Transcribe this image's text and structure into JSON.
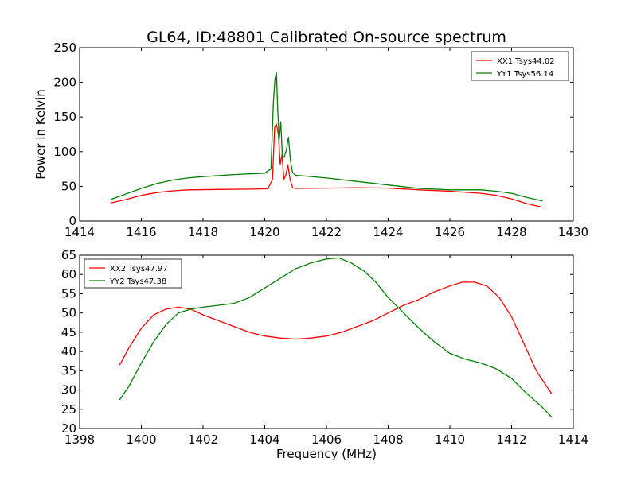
{
  "chart_data": [
    {
      "type": "line",
      "title": "GL64, ID:48801 Calibrated On-source spectrum",
      "xlabel": "",
      "ylabel": "Power in Kelvin",
      "xlim": [
        1414,
        1430
      ],
      "ylim": [
        0,
        250
      ],
      "xticks": [
        1414,
        1416,
        1418,
        1420,
        1422,
        1424,
        1426,
        1428,
        1430
      ],
      "yticks": [
        0,
        50,
        100,
        150,
        200,
        250
      ],
      "grid": false,
      "legend": "top-right",
      "series": [
        {
          "name": "XX1 Tsys44.02",
          "color": "#ff0000",
          "points": [
            [
              1415.0,
              26
            ],
            [
              1415.5,
              31
            ],
            [
              1416.0,
              37
            ],
            [
              1416.5,
              41
            ],
            [
              1417.0,
              43.5
            ],
            [
              1417.5,
              45
            ],
            [
              1418.5,
              45.5
            ],
            [
              1419.5,
              46
            ],
            [
              1420.1,
              46.5
            ],
            [
              1420.25,
              60
            ],
            [
              1420.32,
              135
            ],
            [
              1420.38,
              140
            ],
            [
              1420.44,
              125
            ],
            [
              1420.5,
              82
            ],
            [
              1420.56,
              96
            ],
            [
              1420.62,
              60
            ],
            [
              1420.68,
              66
            ],
            [
              1420.75,
              81
            ],
            [
              1420.82,
              60
            ],
            [
              1420.9,
              48
            ],
            [
              1421.0,
              47
            ],
            [
              1422.0,
              47.5
            ],
            [
              1423.0,
              48
            ],
            [
              1424.0,
              47.5
            ],
            [
              1425.0,
              45
            ],
            [
              1426.0,
              43
            ],
            [
              1427.0,
              40
            ],
            [
              1427.5,
              37
            ],
            [
              1428.0,
              32
            ],
            [
              1428.5,
              25
            ],
            [
              1429.0,
              20
            ]
          ]
        },
        {
          "name": "YY1 Tsys56.14",
          "color": "#008000",
          "points": [
            [
              1415.0,
              31
            ],
            [
              1415.5,
              39
            ],
            [
              1416.0,
              47
            ],
            [
              1416.5,
              54
            ],
            [
              1417.0,
              59
            ],
            [
              1417.5,
              62
            ],
            [
              1418.0,
              64
            ],
            [
              1419.0,
              67
            ],
            [
              1420.0,
              69
            ],
            [
              1420.2,
              75
            ],
            [
              1420.28,
              170
            ],
            [
              1420.33,
              205
            ],
            [
              1420.38,
              214
            ],
            [
              1420.42,
              160
            ],
            [
              1420.47,
              118
            ],
            [
              1420.52,
              143
            ],
            [
              1420.57,
              95
            ],
            [
              1420.63,
              92
            ],
            [
              1420.7,
              102
            ],
            [
              1420.77,
              121
            ],
            [
              1420.83,
              88
            ],
            [
              1420.9,
              70
            ],
            [
              1421.0,
              66
            ],
            [
              1422.0,
              62
            ],
            [
              1423.0,
              57
            ],
            [
              1424.0,
              52
            ],
            [
              1425.0,
              47
            ],
            [
              1426.0,
              45
            ],
            [
              1427.0,
              45
            ],
            [
              1427.5,
              43
            ],
            [
              1428.0,
              40
            ],
            [
              1428.5,
              34
            ],
            [
              1429.0,
              29
            ]
          ]
        }
      ]
    },
    {
      "type": "line",
      "title": "",
      "xlabel": "Frequency (MHz)",
      "ylabel": "",
      "xlim": [
        1398,
        1414
      ],
      "ylim": [
        20,
        65
      ],
      "xticks": [
        1398,
        1400,
        1402,
        1404,
        1406,
        1408,
        1410,
        1412,
        1414
      ],
      "yticks": [
        20,
        25,
        30,
        35,
        40,
        45,
        50,
        55,
        60,
        65
      ],
      "grid": false,
      "legend": "top-left",
      "series": [
        {
          "name": "XX2 Tsys47.97",
          "color": "#ff0000",
          "points": [
            [
              1399.3,
              36.5
            ],
            [
              1399.6,
              41
            ],
            [
              1400.0,
              46
            ],
            [
              1400.4,
              49.5
            ],
            [
              1400.8,
              51
            ],
            [
              1401.2,
              51.5
            ],
            [
              1401.6,
              51
            ],
            [
              1402.0,
              49.5
            ],
            [
              1402.5,
              48
            ],
            [
              1403.0,
              46.5
            ],
            [
              1403.5,
              45
            ],
            [
              1404.0,
              44
            ],
            [
              1404.5,
              43.5
            ],
            [
              1405.0,
              43.2
            ],
            [
              1405.5,
              43.5
            ],
            [
              1406.0,
              44
            ],
            [
              1406.5,
              45
            ],
            [
              1407.0,
              46.5
            ],
            [
              1407.5,
              48
            ],
            [
              1408.0,
              50
            ],
            [
              1408.5,
              52
            ],
            [
              1409.0,
              53.5
            ],
            [
              1409.5,
              55.5
            ],
            [
              1410.0,
              57
            ],
            [
              1410.4,
              58
            ],
            [
              1410.8,
              58
            ],
            [
              1411.2,
              57
            ],
            [
              1411.6,
              54
            ],
            [
              1412.0,
              49
            ],
            [
              1412.4,
              42
            ],
            [
              1412.8,
              35
            ],
            [
              1413.3,
              29
            ]
          ]
        },
        {
          "name": "YY2 Tsys47.38",
          "color": "#008000",
          "points": [
            [
              1399.3,
              27.5
            ],
            [
              1399.6,
              31
            ],
            [
              1400.0,
              37
            ],
            [
              1400.4,
              42.5
            ],
            [
              1400.8,
              47
            ],
            [
              1401.2,
              50
            ],
            [
              1401.6,
              51
            ],
            [
              1402.0,
              51.5
            ],
            [
              1402.5,
              52
            ],
            [
              1403.0,
              52.5
            ],
            [
              1403.5,
              54
            ],
            [
              1404.0,
              56.5
            ],
            [
              1404.5,
              59
            ],
            [
              1405.0,
              61.5
            ],
            [
              1405.5,
              63
            ],
            [
              1406.0,
              64
            ],
            [
              1406.4,
              64.3
            ],
            [
              1406.8,
              63
            ],
            [
              1407.2,
              61
            ],
            [
              1407.6,
              58
            ],
            [
              1408.0,
              54
            ],
            [
              1408.5,
              50
            ],
            [
              1409.0,
              46
            ],
            [
              1409.5,
              42.5
            ],
            [
              1410.0,
              39.5
            ],
            [
              1410.5,
              38
            ],
            [
              1411.0,
              37
            ],
            [
              1411.5,
              35.5
            ],
            [
              1412.0,
              33
            ],
            [
              1412.5,
              29
            ],
            [
              1413.0,
              25.5
            ],
            [
              1413.3,
              23
            ]
          ]
        }
      ]
    }
  ]
}
